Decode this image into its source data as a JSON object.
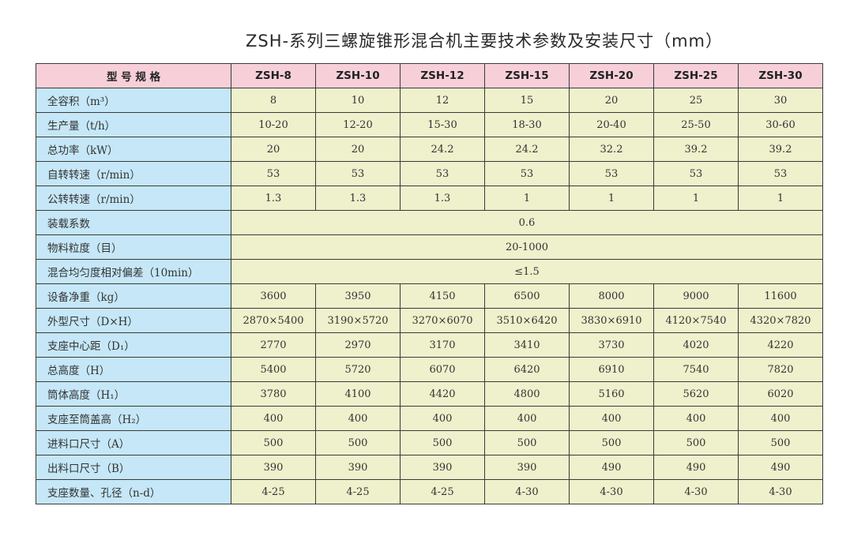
{
  "title": "ZSH-系列三螺旋锥形混合机主要技术参数及安装尺寸（mm）",
  "header": [
    "型 号 规 格",
    "ZSH-8",
    "ZSH-10",
    "ZSH-12",
    "ZSH-15",
    "ZSH-20",
    "ZSH-25",
    "ZSH-30"
  ],
  "rows": [
    {
      "label": "全容积（m³）",
      "values": [
        "8",
        "10",
        "12",
        "15",
        "20",
        "25",
        "30"
      ]
    },
    {
      "label": "生产量（t/h）",
      "values": [
        "10-20",
        "12-20",
        "15-30",
        "18-30",
        "20-40",
        "25-50",
        "30-60"
      ]
    },
    {
      "label": "总功率（kW）",
      "values": [
        "20",
        "20",
        "24.2",
        "24.2",
        "32.2",
        "39.2",
        "39.2"
      ]
    },
    {
      "label": "自转转速（r/min）",
      "values": [
        "53",
        "53",
        "53",
        "53",
        "53",
        "53",
        "53"
      ]
    },
    {
      "label": "公转转速（r/min）",
      "values": [
        "1.3",
        "1.3",
        "1.3",
        "1",
        "1",
        "1",
        "1"
      ]
    },
    {
      "label": "装载系数",
      "merged": "0.6"
    },
    {
      "label": "物料粒度（目）",
      "merged": "20-1000"
    },
    {
      "label": "混合均匀度相对偏差（10min）",
      "merged": "≤1.5"
    },
    {
      "label": "设备净重（kg）",
      "values": [
        "3600",
        "3950",
        "4150",
        "6500",
        "8000",
        "9000",
        "11600"
      ]
    },
    {
      "label": "外型尺寸（D×H）",
      "values": [
        "2870×5400",
        "3190×5720",
        "3270×6070",
        "3510×6420",
        "3830×6910",
        "4120×7540",
        "4320×7820"
      ]
    },
    {
      "label": "支座中心距（D₁）",
      "values": [
        "2770",
        "2970",
        "3170",
        "3410",
        "3730",
        "4020",
        "4220"
      ]
    },
    {
      "label": "总高度（H）",
      "values": [
        "5400",
        "5720",
        "6070",
        "6420",
        "6910",
        "7540",
        "7820"
      ]
    },
    {
      "label": "筒体高度（H₁）",
      "values": [
        "3780",
        "4100",
        "4420",
        "4800",
        "5160",
        "5620",
        "6020"
      ]
    },
    {
      "label": "支座至筒盖高（H₂）",
      "values": [
        "400",
        "400",
        "400",
        "400",
        "400",
        "400",
        "400"
      ]
    },
    {
      "label": "进料口尺寸（A）",
      "values": [
        "500",
        "500",
        "500",
        "500",
        "500",
        "500",
        "500"
      ]
    },
    {
      "label": "出料口尺寸（B）",
      "values": [
        "390",
        "390",
        "390",
        "390",
        "490",
        "490",
        "490"
      ]
    },
    {
      "label": "支座数量、孔径（n-d）",
      "values": [
        "4-25",
        "4-25",
        "4-25",
        "4-30",
        "4-30",
        "4-30",
        "4-30"
      ]
    }
  ],
  "colors": {
    "header_bg": "#f6cfd9",
    "label_bg": "#c5e7f7",
    "value_bg": "#eff0cc",
    "border": "#3a3a3a"
  }
}
